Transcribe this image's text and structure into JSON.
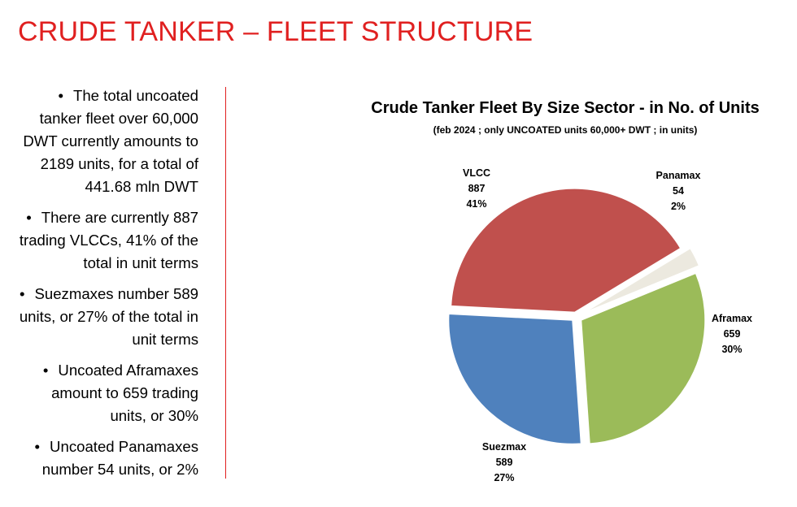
{
  "title": "CRUDE TANKER – FLEET STRUCTURE",
  "bullets": [
    "The total uncoated tanker fleet over 60,000 DWT currently amounts to 2189 units, for a total of 441.68 mln DWT",
    "There are currently 887 trading VLCCs, 41% of the total in unit terms",
    "Suezmaxes number 589 units, or 27% of the total in unit terms",
    "Uncoated Aframaxes amount to 659 trading units, or 30%",
    "Uncoated Panamaxes number 54 units, or 2%"
  ],
  "chart_data": {
    "type": "pie",
    "title": "Crude Tanker Fleet By Size Sector - in No. of Units",
    "subtitle": "(feb 2024 ; only UNCOATED units 60,000+ DWT ; in units)",
    "slices": [
      {
        "label": "Panamax",
        "value": 54,
        "percent": "2%",
        "color": "#ece9df"
      },
      {
        "label": "Aframax",
        "value": 659,
        "percent": "30%",
        "color": "#9bbb59"
      },
      {
        "label": "Suezmax",
        "value": 589,
        "percent": "27%",
        "color": "#4f81bd"
      },
      {
        "label": "VLCC",
        "value": 887,
        "percent": "41%",
        "color": "#c0504d"
      }
    ]
  }
}
